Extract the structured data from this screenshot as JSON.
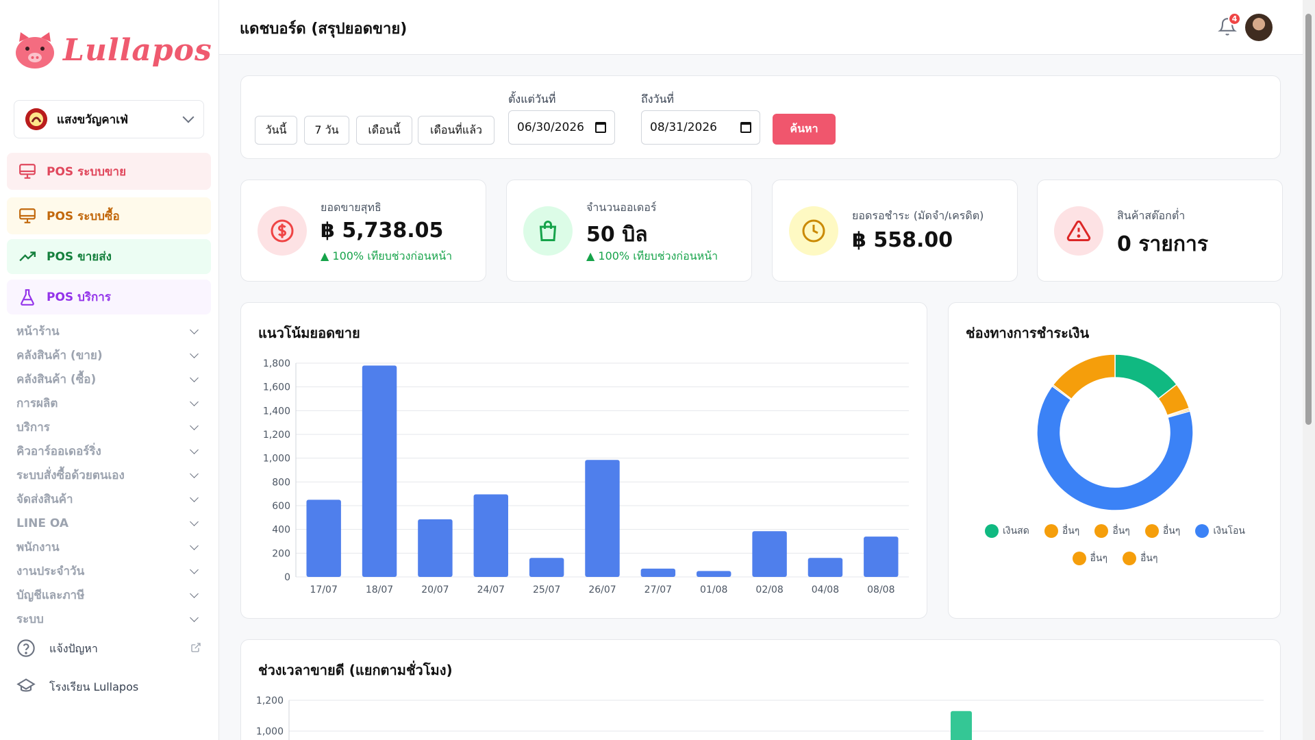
{
  "app": {
    "brand": "Lullapos",
    "branch_name": "แสงขวัญคาเฟ่"
  },
  "pos_menu": [
    {
      "label": "POS ระบบขาย",
      "icon": "monitor-icon",
      "color": "#e0475c"
    },
    {
      "label": "POS ระบบซื้อ",
      "icon": "monitor-icon",
      "color": "#c2680c"
    },
    {
      "label": "POS ขายส่ง",
      "icon": "trending-up-icon",
      "color": "#15803d"
    },
    {
      "label": "POS บริการ",
      "icon": "flask-icon",
      "color": "#9333ea"
    }
  ],
  "menu": [
    "หน้าร้าน",
    "คลังสินค้า (ขาย)",
    "คลังสินค้า (ซื้อ)",
    "การผลิต",
    "บริการ",
    "คิวอาร์ออเดอร์ริ่ง",
    "ระบบสั่งซื้อด้วยตนเอง",
    "จัดส่งสินค้า",
    "LINE OA",
    "พนักงาน",
    "งานประจำวัน",
    "บัญชีและภาษี",
    "ระบบ"
  ],
  "extra_links": {
    "report": "แจ้งปัญหา",
    "school": "โรงเรียน Lullapos"
  },
  "header": {
    "title": "แดชบอร์ด (สรุปยอดขาย)",
    "notification_count": "4"
  },
  "filter": {
    "quick_buttons": [
      "วันนี้",
      "7 วัน",
      "เดือนนี้",
      "เดือนที่แล้ว"
    ],
    "from_label": "ตั้งแต่วันที่",
    "from_value": "06/30/2026",
    "to_label": "ถึงวันที่",
    "to_value": "08/31/2026",
    "search_label": "ค้นหา"
  },
  "stats": [
    {
      "label": "ยอดขายสุทธิ",
      "value": "฿ 5,738.05",
      "trend": "▲ 100% เทียบช่วงก่อนหน้า",
      "icon": "dollar-icon",
      "color": "#ef4444"
    },
    {
      "label": "จำนวนออเดอร์",
      "value": "50 บิล",
      "trend": "▲ 100% เทียบช่วงก่อนหน้า",
      "icon": "shopping-bag-icon",
      "color": "#16a34a"
    },
    {
      "label": "ยอดรอชำระ (มัดจำ/เครดิต)",
      "value": "฿ 558.00",
      "trend": "",
      "icon": "clock-icon",
      "color": "#ca8a04"
    },
    {
      "label": "สินค้าสต๊อกต่ำ",
      "value": "0 รายการ",
      "trend": "",
      "icon": "warning-icon",
      "color": "#dc2626"
    }
  ],
  "sales_chart": {
    "title": "แนวโน้มยอดขาย",
    "chart_data": {
      "type": "bar",
      "categories": [
        "17/07",
        "18/07",
        "20/07",
        "24/07",
        "25/07",
        "26/07",
        "27/07",
        "01/08",
        "02/08",
        "04/08",
        "08/08"
      ],
      "values": [
        650,
        1780,
        485,
        695,
        160,
        985,
        70,
        50,
        385,
        160,
        340
      ],
      "ylim": [
        0,
        1800
      ],
      "yticks": [
        "0",
        "200",
        "400",
        "600",
        "800",
        "1,000",
        "1,200",
        "1,400",
        "1,600",
        "1,800"
      ],
      "color": "#4f7fec",
      "grid": true
    }
  },
  "payment_chart": {
    "title": "ช่องทางการชำระเงิน",
    "chart_data": {
      "type": "pie",
      "labels": [
        "เงินสด",
        "อื่นๆ",
        "อื่นๆ",
        "อื่นๆ",
        "เงินโอน",
        "อื่นๆ",
        "อื่นๆ"
      ],
      "values": [
        14.5,
        5.5,
        0.3,
        0.3,
        64.5,
        0.3,
        14.6
      ],
      "colors": [
        "#10b981",
        "#f59e0b",
        "#f59e0b",
        "#f59e0b",
        "#3b82f6",
        "#f59e0b",
        "#f59e0b"
      ]
    }
  },
  "hours_chart": {
    "title": "ช่วงเวลาขายดี (แยกตามชั่วโมง)",
    "yticks": [
      "1,200",
      "1,000"
    ],
    "bar_color": "#34c795",
    "chart_data": {
      "type": "bar",
      "ylim": [
        0,
        1200
      ],
      "visible_bar_value": 1130
    }
  }
}
